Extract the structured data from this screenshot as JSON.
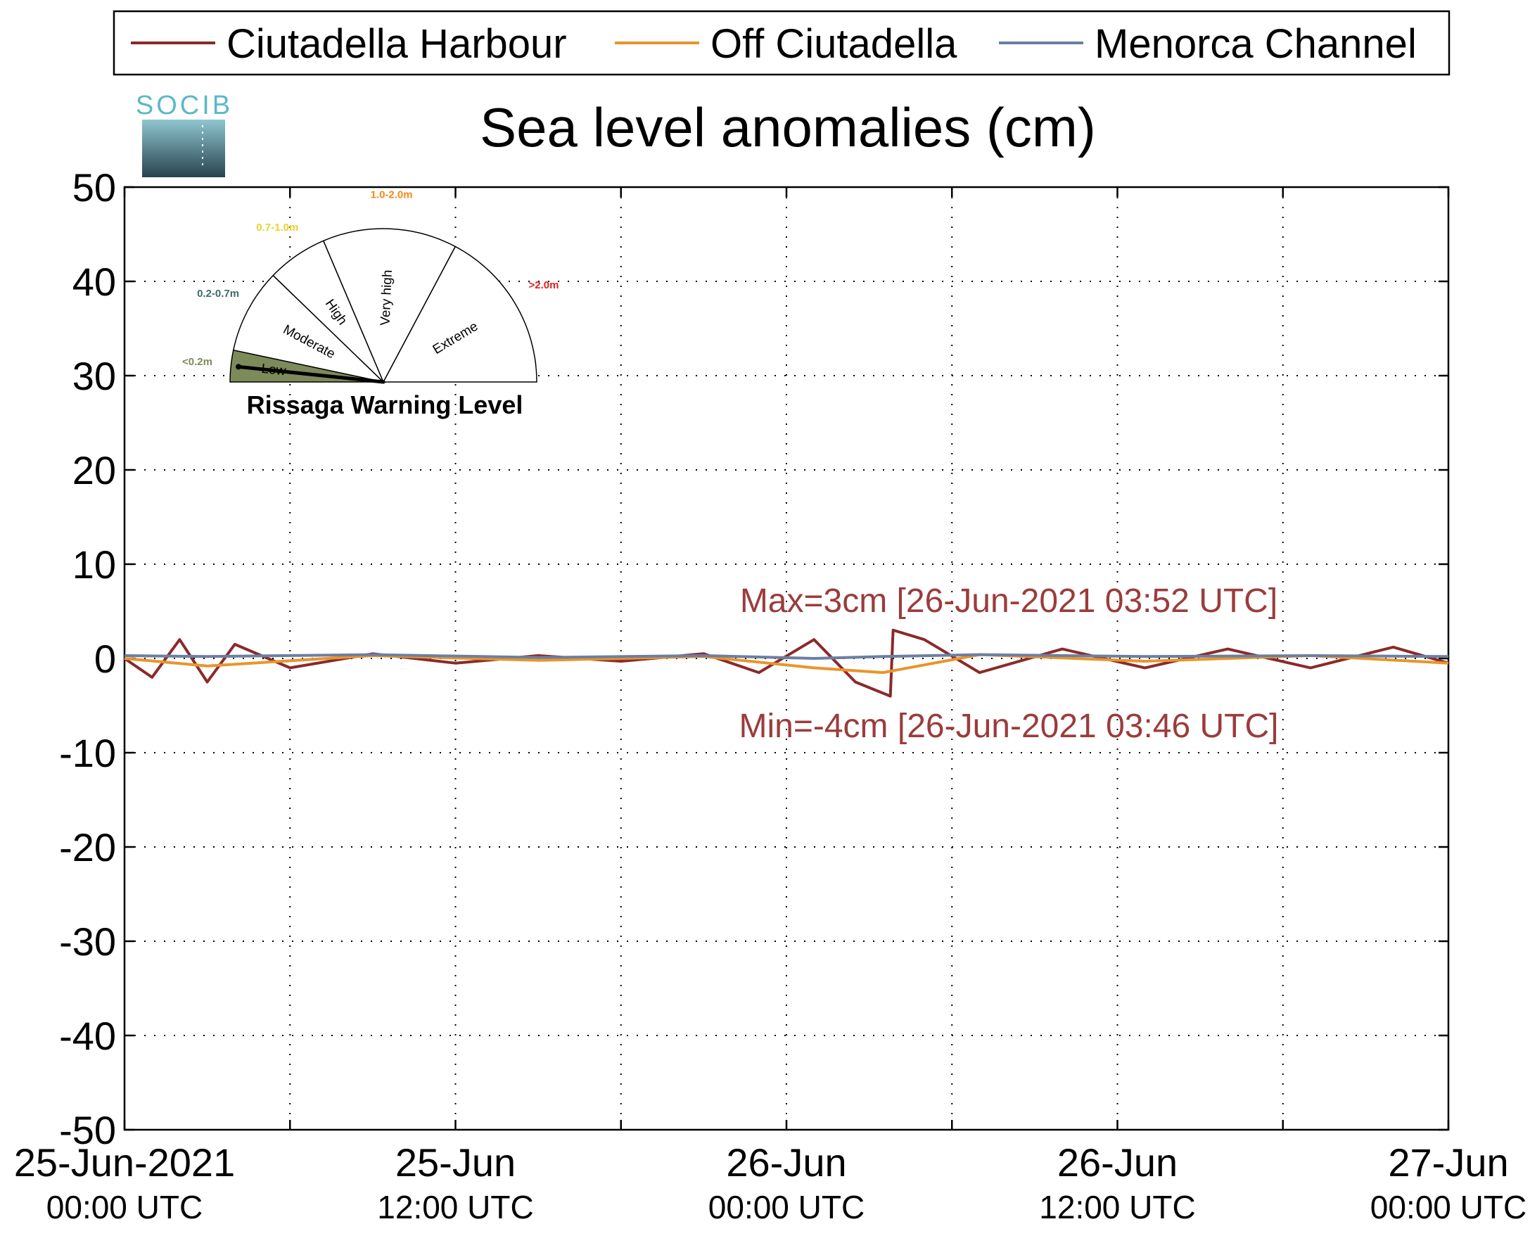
{
  "chart_data": {
    "type": "line",
    "title": "Sea level anomalies (cm)",
    "xlabel": "",
    "ylabel": "",
    "ylim": [
      -50,
      50
    ],
    "yticks": [
      50,
      40,
      30,
      20,
      10,
      0,
      -10,
      -20,
      -30,
      -40,
      -50
    ],
    "yticklabels": [
      "50",
      "40",
      "30",
      "20",
      "10",
      "0",
      "-10",
      "-20",
      "-30",
      "-40",
      "-50"
    ],
    "xlim": [
      "2021-06-25T00:00",
      "2021-06-27T00:00"
    ],
    "xticks": [
      {
        "t": "2021-06-25T00:00",
        "line1": "25-Jun-2021",
        "line2": "00:00 UTC"
      },
      {
        "t": "2021-06-25T12:00",
        "line1": "25-Jun",
        "line2": "12:00 UTC"
      },
      {
        "t": "2021-06-26T00:00",
        "line1": "26-Jun",
        "line2": "00:00 UTC"
      },
      {
        "t": "2021-06-26T12:00",
        "line1": "26-Jun",
        "line2": "12:00 UTC"
      },
      {
        "t": "2021-06-27T00:00",
        "line1": "27-Jun",
        "line2": "00:00 UTC"
      }
    ],
    "grid": true,
    "legend_position": "top",
    "series": [
      {
        "name": "Ciutadella Harbour",
        "color": "#8b2a2a",
        "x": [
          "2021-06-25T00:00",
          "2021-06-25T01:00",
          "2021-06-25T02:00",
          "2021-06-25T03:00",
          "2021-06-25T04:00",
          "2021-06-25T06:00",
          "2021-06-25T09:00",
          "2021-06-25T12:00",
          "2021-06-25T15:00",
          "2021-06-25T18:00",
          "2021-06-25T21:00",
          "2021-06-25T23:00",
          "2021-06-26T01:00",
          "2021-06-26T02:30",
          "2021-06-26T03:46",
          "2021-06-26T03:52",
          "2021-06-26T05:00",
          "2021-06-26T07:00",
          "2021-06-26T10:00",
          "2021-06-26T13:00",
          "2021-06-26T16:00",
          "2021-06-26T19:00",
          "2021-06-26T22:00",
          "2021-06-27T00:00"
        ],
        "y": [
          0,
          -2,
          2,
          -2.5,
          1.5,
          -1,
          0.5,
          -0.5,
          0.3,
          -0.3,
          0.5,
          -1.5,
          2,
          -2.5,
          -4,
          3,
          2,
          -1.5,
          1,
          -1,
          1,
          -1,
          1.2,
          -0.5
        ]
      },
      {
        "name": "Off Ciutadella",
        "color": "#e8952a",
        "x": [
          "2021-06-25T00:00",
          "2021-06-25T03:00",
          "2021-06-25T09:00",
          "2021-06-25T15:00",
          "2021-06-25T21:00",
          "2021-06-26T01:00",
          "2021-06-26T03:30",
          "2021-06-26T07:00",
          "2021-06-26T13:00",
          "2021-06-26T19:00",
          "2021-06-27T00:00"
        ],
        "y": [
          0,
          -0.8,
          0.3,
          -0.2,
          0.2,
          -1,
          -1.5,
          0.4,
          -0.3,
          0.3,
          -0.5
        ]
      },
      {
        "name": "Menorca Channel",
        "color": "#6b7fa3",
        "x": [
          "2021-06-25T00:00",
          "2021-06-25T03:00",
          "2021-06-25T09:00",
          "2021-06-25T15:00",
          "2021-06-25T21:00",
          "2021-06-26T01:00",
          "2021-06-26T03:30",
          "2021-06-26T07:00",
          "2021-06-26T13:00",
          "2021-06-26T19:00",
          "2021-06-27T00:00"
        ],
        "y": [
          0.3,
          0.2,
          0.4,
          0.1,
          0.3,
          0,
          0.2,
          0.4,
          0.2,
          0.3,
          0.2
        ]
      }
    ],
    "annotations": [
      {
        "text": "Max=3cm [26-Jun-2021 03:52 UTC]",
        "color": "#9b3c3c",
        "placement": "above"
      },
      {
        "text": "Min=-4cm [26-Jun-2021 03:46 UTC]",
        "color": "#9b3c3c",
        "placement": "below"
      }
    ]
  },
  "logo": {
    "text": "SOCIB"
  },
  "gauge": {
    "title": "Rissaga Warning Level",
    "levels": [
      {
        "name": "Low",
        "range": "<0.2m",
        "range_color": "#7d8a5a",
        "fill": "#7d8a5a"
      },
      {
        "name": "Moderate",
        "range": "0.2-0.7m",
        "range_color": "#3f6a6a",
        "fill": "none"
      },
      {
        "name": "High",
        "range": "0.7-1.0m",
        "range_color": "#e6d42a",
        "fill": "none"
      },
      {
        "name": "Very high",
        "range": "1.0-2.0m",
        "range_color": "#f08a1a",
        "fill": "none"
      },
      {
        "name": "Extreme",
        "range": ">2.0m",
        "range_color": "#e02020",
        "fill": "none"
      }
    ],
    "current_level": "Low",
    "needle_fraction_of_low_band": 0.5
  }
}
